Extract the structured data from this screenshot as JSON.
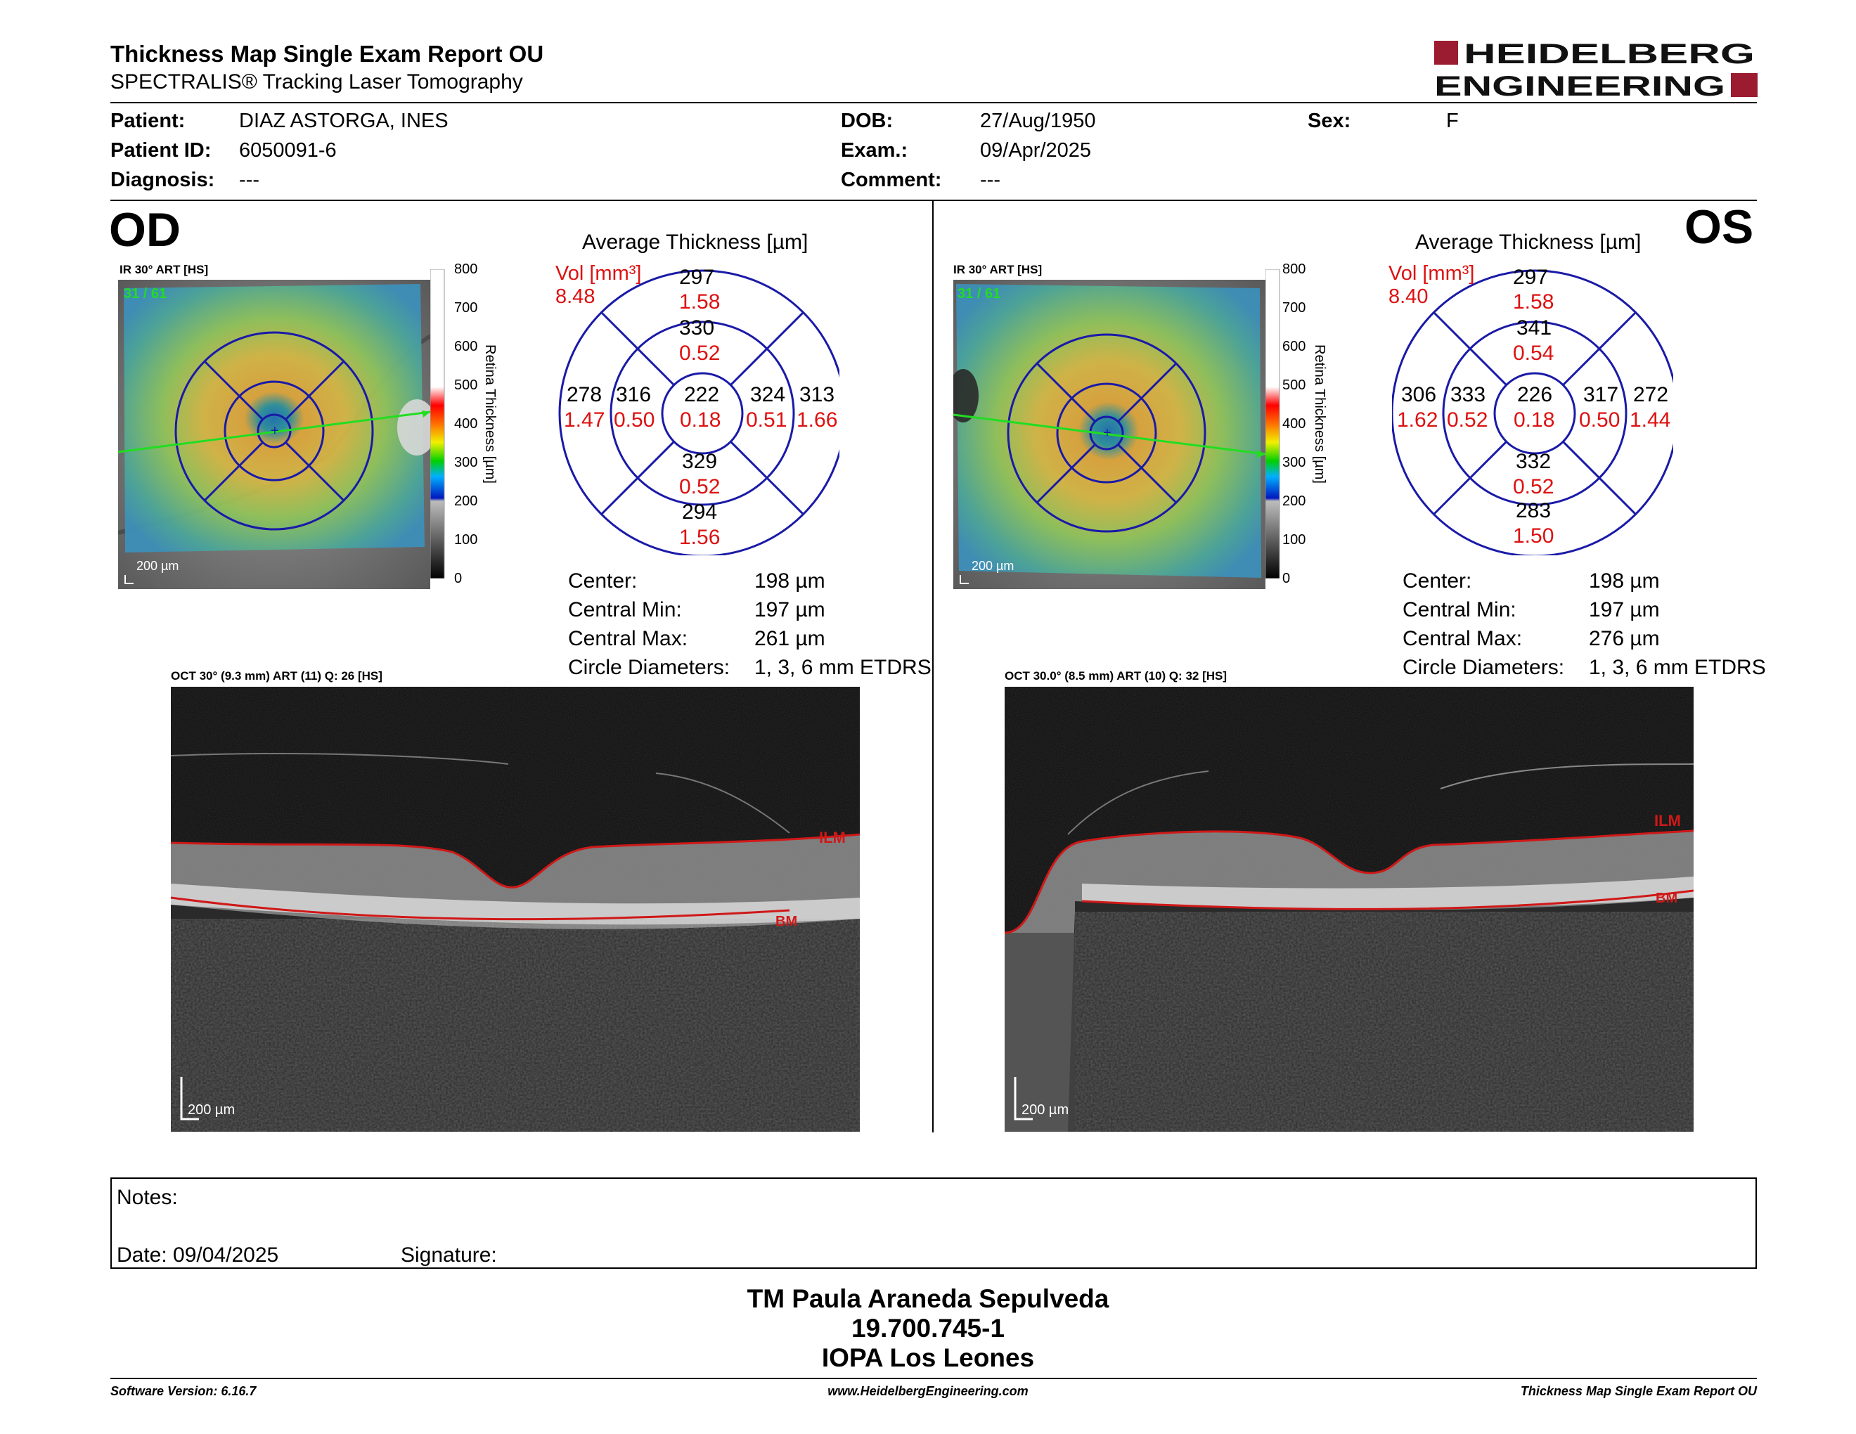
{
  "header": {
    "title": "Thickness Map Single Exam Report OU",
    "subtitle": "SPECTRALIS® Tracking Laser Tomography",
    "logo_line1": "HEIDELBERG",
    "logo_line2": "ENGINEERING"
  },
  "patient": {
    "patient_label": "Patient:",
    "patient_value": "DIAZ ASTORGA, INES",
    "id_label": "Patient ID:",
    "id_value": "6050091-6",
    "diagnosis_label": "Diagnosis:",
    "diagnosis_value": "---",
    "dob_label": "DOB:",
    "dob_value": "27/Aug/1950",
    "exam_label": "Exam.:",
    "exam_value": "09/Apr/2025",
    "comment_label": "Comment:",
    "comment_value": "---",
    "sex_label": "Sex:",
    "sex_value": "F"
  },
  "scale": {
    "ticks": [
      "800",
      "700",
      "600",
      "500",
      "400",
      "300",
      "200",
      "100",
      "0"
    ],
    "label": "Retina Thickness [µm]"
  },
  "od": {
    "eye": "OD",
    "ir_label": "IR 30° ART [HS]",
    "frame": "31 / 61",
    "scalebar": "200 µm",
    "avg_title": "Average Thickness [µm]",
    "vol_label": "Vol [mm³]",
    "vol_value": "8.48",
    "etdrs": {
      "center_t": "222",
      "center_v": "0.18",
      "inner_sup_t": "330",
      "inner_sup_v": "0.52",
      "inner_inf_t": "329",
      "inner_inf_v": "0.52",
      "inner_left_t": "316",
      "inner_left_v": "0.50",
      "inner_right_t": "324",
      "inner_right_v": "0.51",
      "outer_sup_t": "297",
      "outer_sup_v": "1.58",
      "outer_inf_t": "294",
      "outer_inf_v": "1.56",
      "outer_left_t": "278",
      "outer_left_v": "1.47",
      "outer_right_t": "313",
      "outer_right_v": "1.66"
    },
    "stats": {
      "center_label": "Center:",
      "center_value": "198 µm",
      "min_label": "Central Min:",
      "min_value": "197 µm",
      "max_label": "Central Max:",
      "max_value": "261 µm",
      "circ_label": "Circle Diameters:",
      "circ_value": "1, 3, 6 mm ETDRS"
    },
    "oct_label": "OCT 30° (9.3 mm) ART (11) Q: 26 [HS]",
    "oct_scalebar": "200 µm",
    "ilm": "ILM",
    "bm": "BM"
  },
  "os": {
    "eye": "OS",
    "ir_label": "IR 30° ART [HS]",
    "frame": "31 / 61",
    "scalebar": "200 µm",
    "avg_title": "Average Thickness [µm]",
    "vol_label": "Vol [mm³]",
    "vol_value": "8.40",
    "etdrs": {
      "center_t": "226",
      "center_v": "0.18",
      "inner_sup_t": "341",
      "inner_sup_v": "0.54",
      "inner_inf_t": "332",
      "inner_inf_v": "0.52",
      "inner_left_t": "333",
      "inner_left_v": "0.52",
      "inner_right_t": "317",
      "inner_right_v": "0.50",
      "outer_sup_t": "297",
      "outer_sup_v": "1.58",
      "outer_inf_t": "283",
      "outer_inf_v": "1.50",
      "outer_left_t": "306",
      "outer_left_v": "1.62",
      "outer_right_t": "272",
      "outer_right_v": "1.44"
    },
    "stats": {
      "center_label": "Center:",
      "center_value": "198 µm",
      "min_label": "Central Min:",
      "min_value": "197 µm",
      "max_label": "Central Max:",
      "max_value": "276 µm",
      "circ_label": "Circle Diameters:",
      "circ_value": "1, 3, 6 mm ETDRS"
    },
    "oct_label": "OCT 30.0° (8.5 mm) ART (10) Q: 32 [HS]",
    "oct_scalebar": "200 µm",
    "ilm": "ILM",
    "bm": "BM"
  },
  "notes": {
    "notes_label": "Notes:",
    "date_label": "Date: 09/04/2025",
    "signature_label": "Signature:"
  },
  "signoff": {
    "name": "TM Paula Araneda Sepulveda",
    "rut": "19.700.745-1",
    "org": "IOPA Los Leones"
  },
  "footer": {
    "version": "Software Version: 6.16.7",
    "url": "www.HeidelbergEngineering.com",
    "report": "Thickness Map Single Exam Report OU"
  },
  "colors": {
    "accent_red": "#b0122a",
    "volume_red": "#dd1111",
    "etdrs_blue": "#1a1aa8",
    "scan_line_green": "#22dd22",
    "layer_red": "#d01818"
  }
}
